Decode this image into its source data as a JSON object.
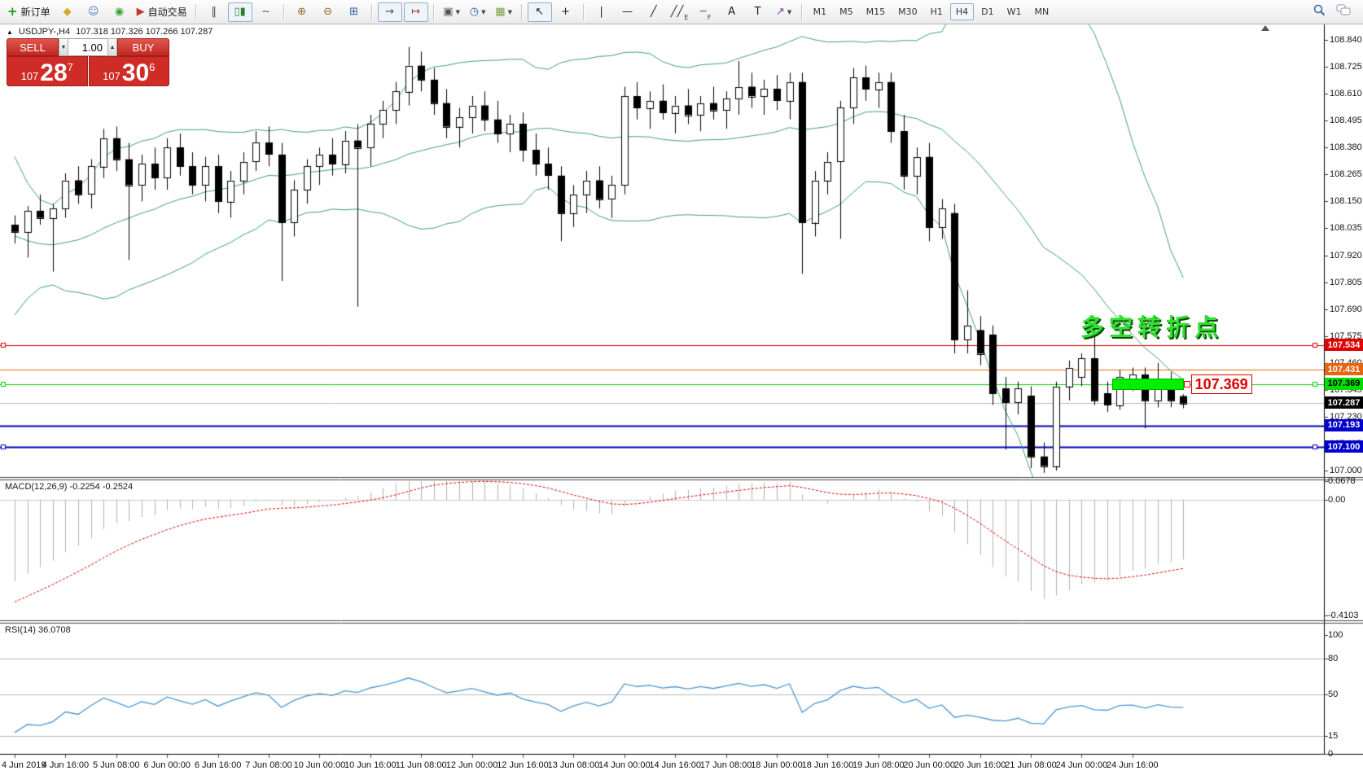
{
  "toolbar": {
    "items": [
      {
        "name": "new-order-button",
        "glyph": "+",
        "color": "#169c16",
        "label": "新订单",
        "bold": true
      },
      {
        "name": "metaeditor-button",
        "glyph": "◆",
        "color": "#d8a425"
      },
      {
        "name": "community-button",
        "glyph": "☺",
        "color": "#4a7fc1"
      },
      {
        "name": "signals-button",
        "glyph": "◉",
        "color": "#35a435"
      },
      {
        "name": "autotrading-button",
        "glyph": "▶",
        "color": "#c0392b",
        "label": "自动交易"
      },
      {
        "sep": true
      },
      {
        "name": "bar-chart-button",
        "glyph": "‖",
        "color": "#555"
      },
      {
        "name": "candlestick-button",
        "glyph": "▯▮",
        "color": "#2e7d32",
        "active": true
      },
      {
        "name": "line-chart-button",
        "glyph": "∼",
        "color": "#2e7d32"
      },
      {
        "sep": true
      },
      {
        "name": "zoom-in-button",
        "glyph": "⊕",
        "color": "#8a6d1a"
      },
      {
        "name": "zoom-out-button",
        "glyph": "⊖",
        "color": "#8a6d1a"
      },
      {
        "name": "tile-windows-button",
        "glyph": "⊞",
        "color": "#2a5fa8"
      },
      {
        "sep": true
      },
      {
        "name": "auto-scroll-button",
        "glyph": "→",
        "color": "#444",
        "active": true
      },
      {
        "name": "chart-shift-button",
        "glyph": "↦",
        "color": "#b03a2e",
        "active": true
      },
      {
        "sep": true
      },
      {
        "name": "new-chart-dropdown",
        "glyph": "▣",
        "color": "#555",
        "caret": true
      },
      {
        "name": "periods-dropdown",
        "glyph": "◷",
        "color": "#2a5fa8",
        "caret": true
      },
      {
        "name": "templates-dropdown",
        "glyph": "▦",
        "color": "#7a9f3a",
        "caret": true
      },
      {
        "sep": true
      },
      {
        "name": "cursor-button",
        "glyph": "↖",
        "color": "#222",
        "active": true
      },
      {
        "name": "crosshair-button",
        "glyph": "+",
        "color": "#222"
      },
      {
        "sep": true
      },
      {
        "name": "vertical-line-button",
        "glyph": "|",
        "color": "#222"
      },
      {
        "name": "horizontal-line-button",
        "glyph": "—",
        "color": "#222"
      },
      {
        "name": "trendline-button",
        "glyph": "╱",
        "color": "#222"
      },
      {
        "name": "channel-button",
        "glyph": "╱╱",
        "sub": "E",
        "color": "#222"
      },
      {
        "name": "fibonacci-button",
        "glyph": "┄",
        "sub": "F",
        "color": "#222"
      },
      {
        "name": "text-button",
        "glyph": "A",
        "color": "#222"
      },
      {
        "name": "label-button",
        "glyph": "T",
        "color": "#222"
      },
      {
        "name": "arrows-dropdown",
        "glyph": "↗",
        "color": "#7a3fa0",
        "caret": true
      },
      {
        "sep": true
      },
      {
        "tf": "M1"
      },
      {
        "tf": "M5"
      },
      {
        "tf": "M15"
      },
      {
        "tf": "M30"
      },
      {
        "tf": "H1"
      },
      {
        "tf": "H4",
        "active": true
      },
      {
        "tf": "D1"
      },
      {
        "tf": "W1"
      },
      {
        "tf": "MN"
      }
    ],
    "right_items": [
      {
        "name": "search-button",
        "svg": "search"
      },
      {
        "name": "chat-button",
        "svg": "chat"
      }
    ]
  },
  "symbol_line": {
    "collapse_icon": "▲",
    "symbol": "USDJPY-,H4",
    "ohlc": "107.318 107.326 107.266 107.287"
  },
  "trade_panel": {
    "sell_label": "SELL",
    "buy_label": "BUY",
    "volume": "1.00",
    "down_icon": "▼",
    "up_icon": "▲",
    "sell_price": {
      "prefix": "107",
      "big": "28",
      "sup": "7"
    },
    "buy_price": {
      "prefix": "107",
      "big": "30",
      "sup": "6"
    }
  },
  "price_axis": {
    "ticks": [
      "108.840",
      "108.725",
      "108.610",
      "108.495",
      "108.380",
      "108.265",
      "108.150",
      "108.035",
      "107.920",
      "107.805",
      "107.690",
      "107.575",
      "107.460",
      "107.345",
      "107.230",
      "107.115",
      "107.000"
    ],
    "tags": [
      {
        "text": "107.534",
        "bg": "#e00000",
        "fg": "#ffffff"
      },
      {
        "text": "107.431",
        "bg": "#e8650f",
        "fg": "#ffffff"
      },
      {
        "text": "107.369",
        "bg": "#00dd00",
        "fg": "#000000"
      },
      {
        "text": "107.287",
        "bg": "#000000",
        "fg": "#ffffff"
      },
      {
        "text": "107.193",
        "bg": "#0000cc",
        "fg": "#ffffff"
      },
      {
        "text": "107.100",
        "bg": "#0000cc",
        "fg": "#ffffff"
      }
    ]
  },
  "hlines": [
    {
      "price": 107.534,
      "color": "#cc0000",
      "width": 1,
      "handles": true
    },
    {
      "price": 107.431,
      "color": "#e8650f",
      "width": 1,
      "handles": false
    },
    {
      "price": 107.369,
      "color": "#00cc00",
      "width": 1,
      "handles": true
    },
    {
      "price": 107.287,
      "color": "#bbbbbb",
      "width": 1,
      "handles": false
    },
    {
      "price": 107.193,
      "color": "#0000bb",
      "width": 2,
      "handles": false
    },
    {
      "price": 107.1,
      "color": "#0000bb",
      "width": 2,
      "handles": true
    }
  ],
  "annotation": {
    "text": "多空转折点",
    "color": "#2fe02f",
    "price_label": "107.369"
  },
  "highlight": {
    "price": 107.369,
    "from_bar": 86.4,
    "to_bar": 91.9,
    "color": "#00f000"
  },
  "macd": {
    "label": "MACD(12,26,9)",
    "value": "-0.2254",
    "signal": "-0.2524",
    "axis": [
      "0.0678",
      "0.00",
      "-0.4103"
    ],
    "fast": 12,
    "slow": 26,
    "smooth": 9
  },
  "rsi": {
    "label": "RSI(14)",
    "value": "36.0708",
    "axis": [
      "100",
      "80",
      "50",
      "15",
      "0"
    ],
    "levels": [
      80,
      50,
      15
    ],
    "period": 14
  },
  "time_axis": {
    "labels": [
      {
        "bar": 0,
        "text": "4 Jun 2019",
        "align": "left"
      },
      {
        "bar": 4,
        "text": "4 Jun 16:00"
      },
      {
        "bar": 8,
        "text": "5 Jun 08:00"
      },
      {
        "bar": 12,
        "text": "6 Jun 00:00"
      },
      {
        "bar": 16,
        "text": "6 Jun 16:00"
      },
      {
        "bar": 20,
        "text": "7 Jun 08:00"
      },
      {
        "bar": 24,
        "text": "10 Jun 00:00"
      },
      {
        "bar": 28,
        "text": "10 Jun 16:00"
      },
      {
        "bar": 32,
        "text": "11 Jun 08:00"
      },
      {
        "bar": 36,
        "text": "12 Jun 00:00"
      },
      {
        "bar": 40,
        "text": "12 Jun 16:00"
      },
      {
        "bar": 44,
        "text": "13 Jun 08:00"
      },
      {
        "bar": 48,
        "text": "14 Jun 00:00"
      },
      {
        "bar": 52,
        "text": "14 Jun 16:00"
      },
      {
        "bar": 56,
        "text": "17 Jun 08:00"
      },
      {
        "bar": 60,
        "text": "18 Jun 00:00"
      },
      {
        "bar": 64,
        "text": "18 Jun 16:00"
      },
      {
        "bar": 68,
        "text": "19 Jun 08:00"
      },
      {
        "bar": 72,
        "text": "20 Jun 00:00"
      },
      {
        "bar": 76,
        "text": "20 Jun 16:00"
      },
      {
        "bar": 80,
        "text": "21 Jun 08:00"
      },
      {
        "bar": 84,
        "text": "24 Jun 00:00"
      },
      {
        "bar": 88,
        "text": "24 Jun 16:00"
      }
    ]
  },
  "chart_data": {
    "type": "candlestick",
    "symbol": "USDJPY-",
    "timeframe": "H4",
    "y_range": [
      107.0,
      108.84
    ],
    "bollinger": {
      "period": 20,
      "deviation": 2,
      "color": "#3da368"
    },
    "colors": {
      "bull": "#ffffff",
      "bear": "#000000",
      "outline": "#000000",
      "macd_hist": "#b0b0b0",
      "macd_signal": "#e00000",
      "rsi_line": "#4d96d2"
    },
    "pre_closes": [
      109.8,
      109.62,
      109.45,
      109.28,
      109.1,
      108.9,
      108.7,
      108.52,
      108.35,
      108.2,
      108.05,
      107.95,
      107.88,
      107.84,
      107.86,
      107.83,
      107.88,
      107.92,
      107.89,
      107.94,
      107.96,
      107.93,
      107.98,
      108.02,
      108.0,
      108.03
    ],
    "candles": [
      [
        108.05,
        108.09,
        107.97,
        108.02
      ],
      [
        108.02,
        108.13,
        107.91,
        108.11
      ],
      [
        108.11,
        108.18,
        108.05,
        108.08
      ],
      [
        108.08,
        108.14,
        107.85,
        108.12
      ],
      [
        108.12,
        108.27,
        108.08,
        108.24
      ],
      [
        108.24,
        108.3,
        108.14,
        108.18
      ],
      [
        108.18,
        108.33,
        108.12,
        108.3
      ],
      [
        108.3,
        108.46,
        108.25,
        108.42
      ],
      [
        108.42,
        108.47,
        108.28,
        108.33
      ],
      [
        108.33,
        108.4,
        107.9,
        108.22
      ],
      [
        108.22,
        108.35,
        108.15,
        108.31
      ],
      [
        108.31,
        108.38,
        108.2,
        108.25
      ],
      [
        108.25,
        108.42,
        108.2,
        108.38
      ],
      [
        108.38,
        108.44,
        108.26,
        108.3
      ],
      [
        108.3,
        108.36,
        108.18,
        108.22
      ],
      [
        108.22,
        108.34,
        108.15,
        108.3
      ],
      [
        108.3,
        108.35,
        108.1,
        108.15
      ],
      [
        108.15,
        108.28,
        108.08,
        108.24
      ],
      [
        108.24,
        108.36,
        108.18,
        108.32
      ],
      [
        108.32,
        108.45,
        108.28,
        108.4
      ],
      [
        108.4,
        108.47,
        108.3,
        108.35
      ],
      [
        108.35,
        108.4,
        107.81,
        108.06
      ],
      [
        108.06,
        108.24,
        108.0,
        108.2
      ],
      [
        108.2,
        108.33,
        108.14,
        108.3
      ],
      [
        108.3,
        108.38,
        108.22,
        108.35
      ],
      [
        108.35,
        108.42,
        108.26,
        108.31
      ],
      [
        108.31,
        108.45,
        108.27,
        108.41
      ],
      [
        108.41,
        108.48,
        107.7,
        108.38
      ],
      [
        108.38,
        108.52,
        108.3,
        108.48
      ],
      [
        108.48,
        108.58,
        108.42,
        108.54
      ],
      [
        108.54,
        108.66,
        108.48,
        108.62
      ],
      [
        108.62,
        108.81,
        108.56,
        108.73
      ],
      [
        108.73,
        108.79,
        108.62,
        108.67
      ],
      [
        108.67,
        108.72,
        108.52,
        108.57
      ],
      [
        108.57,
        108.63,
        108.42,
        108.47
      ],
      [
        108.47,
        108.55,
        108.38,
        108.51
      ],
      [
        108.51,
        108.6,
        108.44,
        108.56
      ],
      [
        108.56,
        108.62,
        108.45,
        108.5
      ],
      [
        108.5,
        108.58,
        108.4,
        108.44
      ],
      [
        108.44,
        108.52,
        108.36,
        108.48
      ],
      [
        108.48,
        108.53,
        108.32,
        108.37
      ],
      [
        108.37,
        108.44,
        108.26,
        108.31
      ],
      [
        108.31,
        108.38,
        108.2,
        108.26
      ],
      [
        108.26,
        108.3,
        107.98,
        108.1
      ],
      [
        108.1,
        108.22,
        108.04,
        108.18
      ],
      [
        108.18,
        108.28,
        108.1,
        108.24
      ],
      [
        108.24,
        108.3,
        108.12,
        108.16
      ],
      [
        108.16,
        108.26,
        108.08,
        108.22
      ],
      [
        108.22,
        108.64,
        108.18,
        108.6
      ],
      [
        108.6,
        108.66,
        108.5,
        108.55
      ],
      [
        108.55,
        108.62,
        108.46,
        108.58
      ],
      [
        108.58,
        108.65,
        108.5,
        108.53
      ],
      [
        108.53,
        108.6,
        108.44,
        108.56
      ],
      [
        108.56,
        108.63,
        108.48,
        108.52
      ],
      [
        108.52,
        108.6,
        108.45,
        108.57
      ],
      [
        108.57,
        108.64,
        108.5,
        108.54
      ],
      [
        108.54,
        108.62,
        108.46,
        108.59
      ],
      [
        108.59,
        108.75,
        108.52,
        108.64
      ],
      [
        108.64,
        108.7,
        108.55,
        108.6
      ],
      [
        108.6,
        108.67,
        108.52,
        108.63
      ],
      [
        108.63,
        108.69,
        108.54,
        108.58
      ],
      [
        108.58,
        108.7,
        108.5,
        108.66
      ],
      [
        108.66,
        108.7,
        107.84,
        108.06
      ],
      [
        108.06,
        108.28,
        108.0,
        108.24
      ],
      [
        108.24,
        108.36,
        108.18,
        108.32
      ],
      [
        108.32,
        108.58,
        107.99,
        108.55
      ],
      [
        108.55,
        108.72,
        108.48,
        108.68
      ],
      [
        108.68,
        108.73,
        108.58,
        108.63
      ],
      [
        108.63,
        108.7,
        108.55,
        108.66
      ],
      [
        108.66,
        108.7,
        108.4,
        108.45
      ],
      [
        108.45,
        108.52,
        108.2,
        108.26
      ],
      [
        108.26,
        108.38,
        108.18,
        108.34
      ],
      [
        108.34,
        108.4,
        107.98,
        108.04
      ],
      [
        108.04,
        108.16,
        107.99,
        108.12
      ],
      [
        108.1,
        108.14,
        107.5,
        107.56
      ],
      [
        107.56,
        107.77,
        107.5,
        107.62
      ],
      [
        107.6,
        107.66,
        107.45,
        107.5
      ],
      [
        107.58,
        107.62,
        107.28,
        107.33
      ],
      [
        107.35,
        107.4,
        107.09,
        107.29
      ],
      [
        107.29,
        107.38,
        107.24,
        107.35
      ],
      [
        107.32,
        107.36,
        107.01,
        107.06
      ],
      [
        107.06,
        107.12,
        106.99,
        107.02
      ],
      [
        107.02,
        107.38,
        107.0,
        107.36
      ],
      [
        107.36,
        107.47,
        107.3,
        107.44
      ],
      [
        107.4,
        107.5,
        107.36,
        107.48
      ],
      [
        107.48,
        107.63,
        107.28,
        107.3
      ],
      [
        107.33,
        107.38,
        107.25,
        107.28
      ],
      [
        107.28,
        107.43,
        107.26,
        107.4
      ],
      [
        107.38,
        107.44,
        107.34,
        107.41
      ],
      [
        107.41,
        107.44,
        107.18,
        107.3
      ],
      [
        107.3,
        107.46,
        107.27,
        107.38
      ],
      [
        107.38,
        107.42,
        107.27,
        107.3
      ],
      [
        107.318,
        107.326,
        107.266,
        107.287
      ]
    ]
  }
}
